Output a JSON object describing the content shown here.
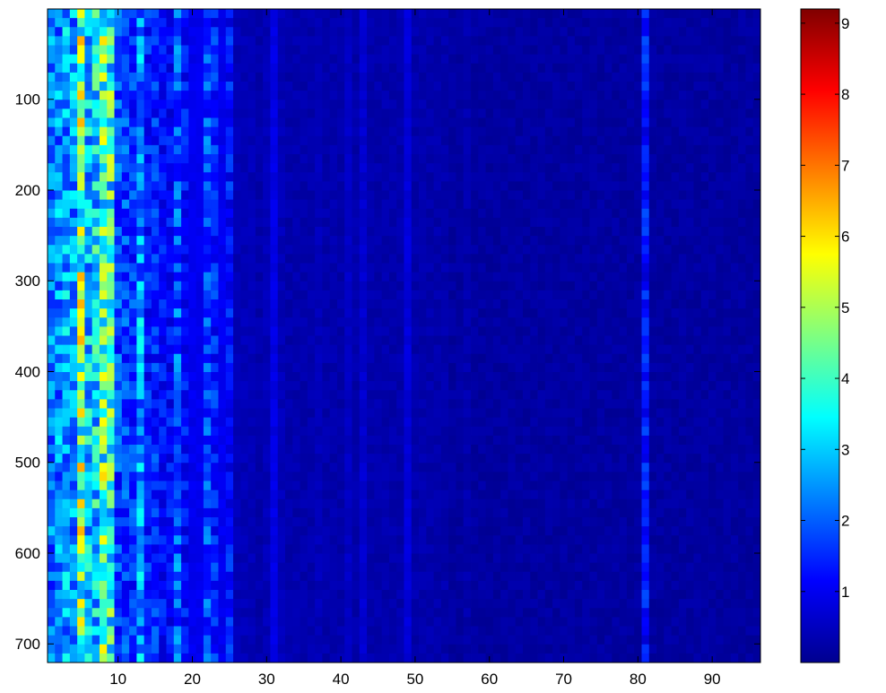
{
  "chart_data": {
    "type": "heatmap",
    "title": "",
    "xlabel": "",
    "ylabel": "",
    "xlim": [
      0.5,
      96.5
    ],
    "ylim": [
      0.5,
      720.5
    ],
    "y_reversed": true,
    "colormap": "jet",
    "x_ticks": [
      10,
      20,
      30,
      40,
      50,
      60,
      70,
      80,
      90
    ],
    "x_tick_labels": [
      "10",
      "20",
      "30",
      "40",
      "50",
      "60",
      "70",
      "80",
      "90"
    ],
    "y_ticks": [
      100,
      200,
      300,
      400,
      500,
      600,
      700
    ],
    "y_tick_labels": [
      "100",
      "200",
      "300",
      "400",
      "500",
      "600",
      "700"
    ],
    "colorbar": {
      "range": [
        0,
        9.2
      ],
      "ticks": [
        1,
        2,
        3,
        4,
        5,
        6,
        7,
        8,
        9
      ],
      "tick_labels": [
        "1",
        "2",
        "3",
        "4",
        "5",
        "6",
        "7",
        "8",
        "9"
      ]
    },
    "rows": 720,
    "columns": 96,
    "column_mean_values": [
      2.2,
      2.4,
      2.6,
      2.5,
      4.5,
      3.0,
      3.2,
      4.2,
      3.8,
      1.8,
      1.8,
      1.6,
      2.5,
      1.4,
      1.5,
      1.2,
      1.2,
      2.0,
      1.2,
      1.0,
      1.0,
      1.8,
      1.4,
      1.0,
      1.3,
      0.5,
      0.5,
      0.5,
      0.4,
      0.5,
      0.9,
      0.5,
      0.4,
      0.4,
      0.4,
      0.4,
      0.5,
      0.4,
      0.4,
      0.4,
      0.6,
      0.4,
      0.7,
      0.4,
      0.4,
      0.4,
      0.4,
      0.4,
      0.8,
      0.4,
      0.4,
      0.4,
      0.4,
      0.4,
      0.3,
      0.3,
      0.4,
      0.3,
      0.3,
      0.3,
      0.3,
      0.3,
      0.3,
      0.3,
      0.3,
      0.3,
      0.3,
      0.3,
      0.3,
      0.3,
      0.3,
      0.3,
      0.3,
      0.3,
      0.3,
      0.3,
      0.3,
      0.3,
      0.3,
      0.3,
      1.3,
      0.3,
      0.3,
      0.3,
      0.3,
      0.3,
      0.3,
      0.3,
      0.3,
      0.3,
      0.3,
      0.3,
      0.3,
      0.3,
      0.3,
      0.3
    ]
  }
}
